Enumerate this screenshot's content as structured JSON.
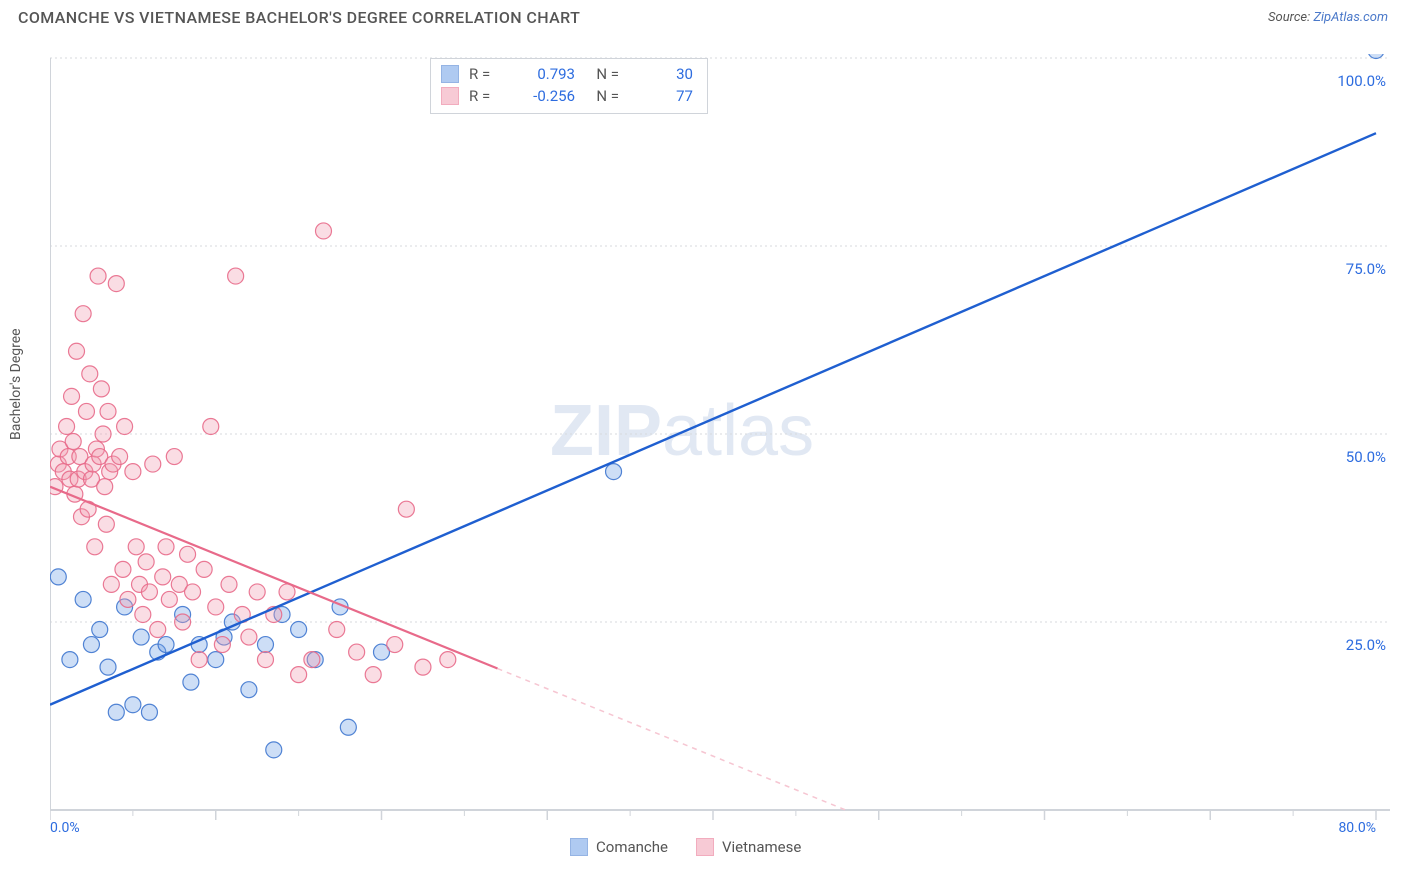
{
  "header": {
    "title": "COMANCHE VS VIETNAMESE BACHELOR'S DEGREE CORRELATION CHART",
    "source_label": "Source: ",
    "source_name": "ZipAtlas.com"
  },
  "watermark": {
    "zip": "ZIP",
    "atlas": "atlas"
  },
  "ylabel": "Bachelor's Degree",
  "chart": {
    "type": "scatter",
    "background_color": "#ffffff",
    "grid_color": "#d7dadd",
    "grid_dash": "2,3",
    "axis_color": "#d0d4da",
    "tick_color": "#d0d4da",
    "tick_label_color": "#2d6cdf",
    "xlim": [
      0,
      80
    ],
    "ylim": [
      0,
      100
    ],
    "x_ticks_major": [
      0,
      10,
      20,
      30,
      40,
      50,
      60,
      70,
      80
    ],
    "x_tick_labels": {
      "0": "0.0%",
      "80": "80.0%"
    },
    "y_ticks_major": [
      0,
      25,
      50,
      75,
      100
    ],
    "y_tick_labels": {
      "25": "25.0%",
      "50": "50.0%",
      "75": "75.0%",
      "100": "100.0%"
    },
    "marker_radius": 8,
    "marker_fill_opacity": 0.35,
    "marker_stroke_opacity": 0.9,
    "marker_stroke_width": 1.2,
    "series": [
      {
        "name": "Comanche",
        "color": "#6fa0e6",
        "stroke": "#3f77cf",
        "r_value": "0.793",
        "n_value": "30",
        "trend": {
          "x1": 0,
          "y1": 14,
          "x2": 80,
          "y2": 90,
          "solid_until_x": 80,
          "width": 2.4,
          "color": "#1f5fd0"
        },
        "points": [
          [
            0.5,
            31
          ],
          [
            1.2,
            20
          ],
          [
            2.0,
            28
          ],
          [
            2.5,
            22
          ],
          [
            3.0,
            24
          ],
          [
            3.5,
            19
          ],
          [
            4.0,
            13
          ],
          [
            4.5,
            27
          ],
          [
            5.0,
            14
          ],
          [
            5.5,
            23
          ],
          [
            6.0,
            13
          ],
          [
            6.5,
            21
          ],
          [
            7.0,
            22
          ],
          [
            8.0,
            26
          ],
          [
            8.5,
            17
          ],
          [
            9.0,
            22
          ],
          [
            10.0,
            20
          ],
          [
            10.5,
            23
          ],
          [
            11.0,
            25
          ],
          [
            12.0,
            16
          ],
          [
            13.0,
            22
          ],
          [
            14.0,
            26
          ],
          [
            15.0,
            24
          ],
          [
            16.0,
            20
          ],
          [
            17.5,
            27
          ],
          [
            18.0,
            11
          ],
          [
            20.0,
            21
          ],
          [
            13.5,
            8
          ],
          [
            34.0,
            45
          ],
          [
            80.0,
            101
          ]
        ]
      },
      {
        "name": "Vietnamese",
        "color": "#f29fb3",
        "stroke": "#e86a8a",
        "r_value": "-0.256",
        "n_value": "77",
        "trend": {
          "x1": 0,
          "y1": 43,
          "x2": 48,
          "y2": 0,
          "solid_until_x": 27,
          "width": 2.2,
          "color": "#e86a8a",
          "dash_color": "#f6c6d2"
        },
        "points": [
          [
            0.3,
            43
          ],
          [
            0.5,
            46
          ],
          [
            0.6,
            48
          ],
          [
            0.8,
            45
          ],
          [
            1.0,
            51
          ],
          [
            1.1,
            47
          ],
          [
            1.2,
            44
          ],
          [
            1.3,
            55
          ],
          [
            1.4,
            49
          ],
          [
            1.5,
            42
          ],
          [
            1.6,
            61
          ],
          [
            1.7,
            44
          ],
          [
            1.8,
            47
          ],
          [
            1.9,
            39
          ],
          [
            2.0,
            66
          ],
          [
            2.1,
            45
          ],
          [
            2.2,
            53
          ],
          [
            2.3,
            40
          ],
          [
            2.4,
            58
          ],
          [
            2.5,
            44
          ],
          [
            2.6,
            46
          ],
          [
            2.7,
            35
          ],
          [
            2.8,
            48
          ],
          [
            2.9,
            71
          ],
          [
            3.0,
            47
          ],
          [
            3.1,
            56
          ],
          [
            3.2,
            50
          ],
          [
            3.3,
            43
          ],
          [
            3.4,
            38
          ],
          [
            3.5,
            53
          ],
          [
            3.6,
            45
          ],
          [
            3.7,
            30
          ],
          [
            3.8,
            46
          ],
          [
            4.0,
            70
          ],
          [
            4.2,
            47
          ],
          [
            4.4,
            32
          ],
          [
            4.5,
            51
          ],
          [
            4.7,
            28
          ],
          [
            5.0,
            45
          ],
          [
            5.2,
            35
          ],
          [
            5.4,
            30
          ],
          [
            5.6,
            26
          ],
          [
            5.8,
            33
          ],
          [
            6.0,
            29
          ],
          [
            6.2,
            46
          ],
          [
            6.5,
            24
          ],
          [
            6.8,
            31
          ],
          [
            7.0,
            35
          ],
          [
            7.2,
            28
          ],
          [
            7.5,
            47
          ],
          [
            7.8,
            30
          ],
          [
            8.0,
            25
          ],
          [
            8.3,
            34
          ],
          [
            8.6,
            29
          ],
          [
            9.0,
            20
          ],
          [
            9.3,
            32
          ],
          [
            9.7,
            51
          ],
          [
            10.0,
            27
          ],
          [
            10.4,
            22
          ],
          [
            10.8,
            30
          ],
          [
            11.2,
            71
          ],
          [
            11.6,
            26
          ],
          [
            12.0,
            23
          ],
          [
            12.5,
            29
          ],
          [
            13.0,
            20
          ],
          [
            13.5,
            26
          ],
          [
            14.3,
            29
          ],
          [
            15.0,
            18
          ],
          [
            15.8,
            20
          ],
          [
            16.5,
            77
          ],
          [
            17.3,
            24
          ],
          [
            18.5,
            21
          ],
          [
            19.5,
            18
          ],
          [
            20.8,
            22
          ],
          [
            21.5,
            40
          ],
          [
            22.5,
            19
          ],
          [
            24.0,
            20
          ]
        ]
      }
    ]
  },
  "stats_legend": {
    "r_label": "R =",
    "n_label": "N ="
  },
  "series_legend": {
    "items": [
      "Comanche",
      "Vietnamese"
    ]
  }
}
